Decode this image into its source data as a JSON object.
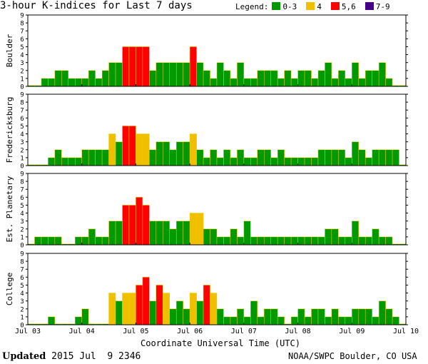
{
  "chart_data": {
    "type": "bar",
    "title": "3-hour K-indices for Last 7 days",
    "xlabel": "Coordinate Universal Time (UTC)",
    "x_tick_labels": [
      "Jul 03",
      "Jul 04",
      "Jul 05",
      "Jul 06",
      "Jul 07",
      "Jul 08",
      "Jul 09",
      "Jul 10"
    ],
    "ylim": [
      0,
      9
    ],
    "y_ticks": [
      "0",
      "1",
      "2",
      "3",
      "4",
      "5",
      "6",
      "7",
      "8",
      "9"
    ],
    "bars_per_day": 8,
    "legend": {
      "title": "Legend:",
      "items": [
        {
          "label": "0-3",
          "color": "#009900"
        },
        {
          "label": "4",
          "color": "#f0c000"
        },
        {
          "label": "5,6",
          "color": "#ff0000"
        },
        {
          "label": "7-9",
          "color": "#440088"
        }
      ]
    },
    "panels": [
      {
        "name": "Boulder",
        "values": [
          0,
          0,
          1,
          1,
          2,
          2,
          1,
          1,
          1,
          2,
          1,
          2,
          3,
          3,
          5,
          5,
          5,
          5,
          2,
          3,
          3,
          3,
          3,
          3,
          5,
          3,
          2,
          1,
          3,
          2,
          1,
          3,
          1,
          1,
          2,
          2,
          2,
          1,
          2,
          1,
          2,
          2,
          1,
          2,
          3,
          1,
          2,
          1,
          3,
          1,
          2,
          2,
          3,
          1,
          0,
          0
        ]
      },
      {
        "name": "Fredericksburg",
        "values": [
          0,
          0,
          0,
          1,
          2,
          1,
          1,
          1,
          2,
          2,
          2,
          2,
          4,
          3,
          5,
          5,
          4,
          4,
          2,
          3,
          3,
          2,
          3,
          3,
          4,
          2,
          1,
          2,
          1,
          2,
          1,
          2,
          1,
          1,
          2,
          2,
          1,
          2,
          1,
          1,
          1,
          1,
          1,
          2,
          2,
          2,
          2,
          1,
          3,
          2,
          1,
          2,
          2,
          2,
          2,
          0
        ]
      },
      {
        "name": "Est. Planetary",
        "values": [
          0,
          1,
          1,
          1,
          1,
          0,
          0,
          1,
          1,
          2,
          1,
          1,
          3,
          3,
          5,
          5,
          6,
          5,
          3,
          3,
          3,
          2,
          3,
          3,
          4,
          4,
          2,
          2,
          1,
          1,
          2,
          1,
          3,
          1,
          1,
          1,
          1,
          1,
          1,
          1,
          1,
          1,
          1,
          1,
          2,
          2,
          1,
          1,
          3,
          1,
          1,
          2,
          1,
          1,
          0,
          0
        ]
      },
      {
        "name": "College",
        "values": [
          0,
          0,
          0,
          1,
          0,
          0,
          0,
          1,
          2,
          0,
          0,
          0,
          4,
          3,
          4,
          4,
          5,
          6,
          3,
          5,
          4,
          2,
          3,
          2,
          4,
          3,
          5,
          4,
          2,
          1,
          1,
          2,
          1,
          3,
          1,
          2,
          2,
          1,
          0,
          1,
          2,
          1,
          2,
          2,
          1,
          2,
          1,
          1,
          2,
          2,
          2,
          1,
          3,
          2,
          1,
          0
        ]
      }
    ]
  },
  "footer": {
    "updated_label": "Updated",
    "updated_value": " 2015 Jul  9 2346",
    "credit": "NOAA/SWPC Boulder, CO USA"
  }
}
